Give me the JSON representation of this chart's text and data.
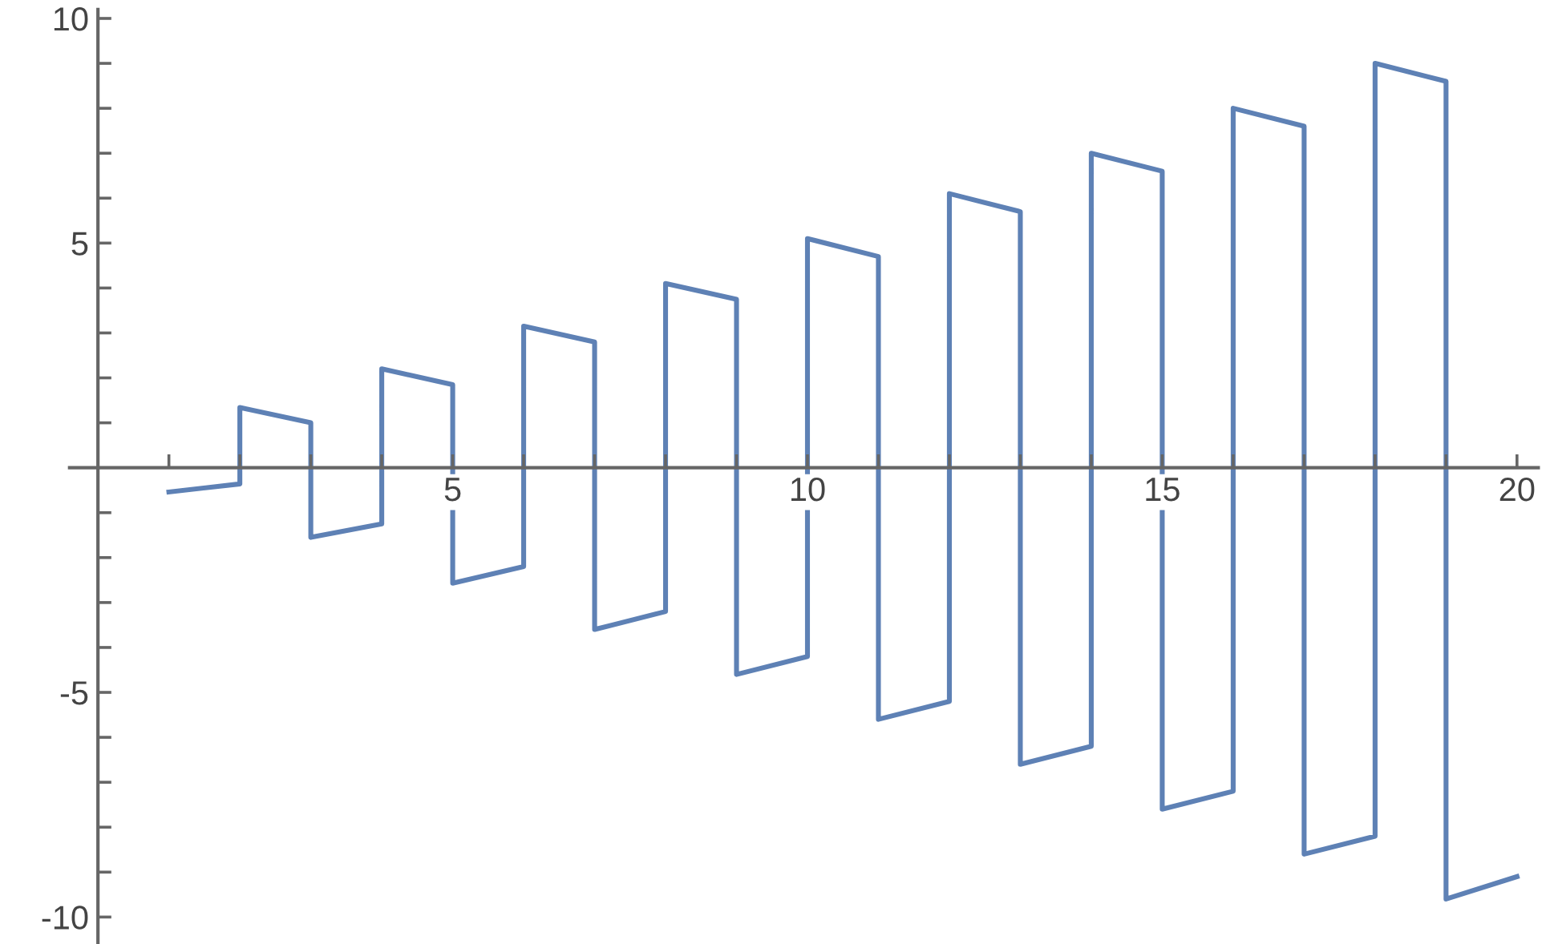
{
  "chart_data": {
    "type": "line",
    "x": [
      1,
      2,
      2,
      3,
      3,
      4,
      4,
      5,
      5,
      6,
      6,
      7,
      7,
      8,
      8,
      9,
      9,
      10,
      10,
      11,
      11,
      12,
      12,
      13,
      13,
      14,
      14,
      15,
      15,
      16,
      16,
      17,
      17,
      18,
      18,
      19,
      19,
      20
    ],
    "series": [
      {
        "color": "#5e81b5",
        "values": [
          -0.54,
          -0.36,
          1.34,
          1.0,
          -1.55,
          -1.25,
          2.2,
          1.85,
          -2.57,
          -2.2,
          3.15,
          2.8,
          -3.6,
          -3.2,
          4.1,
          3.75,
          -4.6,
          -4.2,
          5.1,
          4.7,
          -5.6,
          -5.2,
          6.1,
          5.7,
          -6.6,
          -6.2,
          7.0,
          6.6,
          -7.6,
          -7.2,
          8.0,
          7.6,
          -8.6,
          -8.2,
          9.0,
          8.6,
          -9.6,
          -9.1
        ]
      }
    ],
    "xlim": [
      -0.4,
      20.3
    ],
    "ylim": [
      -10.6,
      10.2
    ],
    "xticks": [
      {
        "value": 1,
        "label": null
      },
      {
        "value": 2,
        "label": null
      },
      {
        "value": 3,
        "label": null
      },
      {
        "value": 4,
        "label": null
      },
      5,
      {
        "value": 6,
        "label": null
      },
      {
        "value": 7,
        "label": null
      },
      {
        "value": 8,
        "label": null
      },
      {
        "value": 9,
        "label": null
      },
      10,
      {
        "value": 11,
        "label": null
      },
      {
        "value": 12,
        "label": null
      },
      {
        "value": 13,
        "label": null
      },
      {
        "value": 14,
        "label": null
      },
      15,
      {
        "value": 16,
        "label": null
      },
      {
        "value": 17,
        "label": null
      },
      {
        "value": 18,
        "label": null
      },
      {
        "value": 19,
        "label": null
      },
      20
    ],
    "yticks": [
      -10,
      {
        "value": -9,
        "label": null
      },
      {
        "value": -8,
        "label": null
      },
      {
        "value": -7,
        "label": null
      },
      {
        "value": -6,
        "label": null
      },
      -5,
      {
        "value": -4,
        "label": null
      },
      {
        "value": -3,
        "label": null
      },
      {
        "value": -2,
        "label": null
      },
      {
        "value": -1,
        "label": null
      },
      {
        "value": 1,
        "label": null
      },
      {
        "value": 2,
        "label": null
      },
      {
        "value": 3,
        "label": null
      },
      {
        "value": 4,
        "label": null
      },
      5,
      {
        "value": 6,
        "label": null
      },
      {
        "value": 7,
        "label": null
      },
      {
        "value": 8,
        "label": null
      },
      {
        "value": 9,
        "label": null
      },
      10
    ],
    "grid": false,
    "marker": "none",
    "line_style": "solid"
  }
}
